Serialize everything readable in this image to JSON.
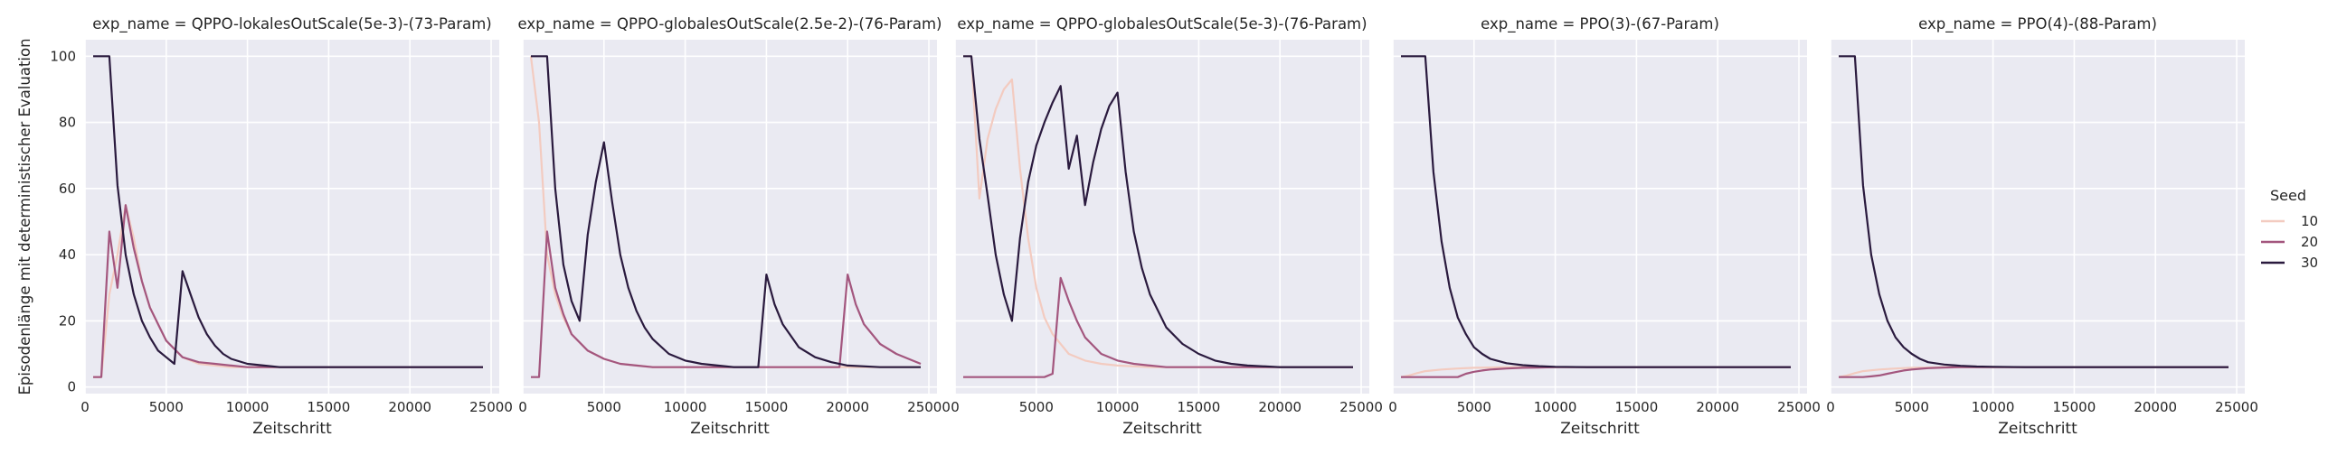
{
  "ylabel": "Episodenlänge mit deterministischer Evaluation",
  "legend": {
    "title": "Seed",
    "entries": [
      {
        "label": "10",
        "color": "#f3cbc0"
      },
      {
        "label": "20",
        "color": "#a3567e"
      },
      {
        "label": "30",
        "color": "#2a1a3e"
      }
    ]
  },
  "chart_data": [
    {
      "type": "line",
      "title": "exp_name = QPPO-lokalesOutScale(5e-3)-(73-Param)",
      "xlabel": "Zeitschritt",
      "xlim": [
        0,
        25500
      ],
      "ylim": [
        -2,
        105
      ],
      "xticks": [
        0,
        5000,
        10000,
        15000,
        20000,
        25000
      ],
      "yticks": [
        0,
        20,
        40,
        60,
        80,
        100
      ],
      "grid": true,
      "series": [
        {
          "name": "10",
          "x": [
            500,
            1000,
            1500,
            2000,
            2500,
            3000,
            3500,
            4000,
            5000,
            6000,
            7000,
            8000,
            9000,
            10000,
            12000,
            15000,
            20000,
            24500
          ],
          "y": [
            3,
            3,
            28,
            40,
            55,
            45,
            32,
            24,
            14,
            9,
            7,
            6.5,
            6,
            6,
            6,
            6,
            6,
            6
          ]
        },
        {
          "name": "20",
          "x": [
            500,
            1000,
            1500,
            2000,
            2500,
            3000,
            3500,
            4000,
            4500,
            5000,
            6000,
            7000,
            8000,
            9000,
            10000,
            12000,
            15000,
            20000,
            24500
          ],
          "y": [
            3,
            3,
            47,
            30,
            55,
            42,
            32,
            24,
            19,
            14,
            9,
            7.5,
            7,
            6.5,
            6,
            6,
            6,
            6,
            6
          ]
        },
        {
          "name": "30",
          "x": [
            500,
            1000,
            1500,
            2000,
            2500,
            3000,
            3500,
            4000,
            4500,
            5000,
            5500,
            6000,
            6500,
            7000,
            7500,
            8000,
            8500,
            9000,
            10000,
            11000,
            12000,
            13000,
            15000,
            20000,
            24500
          ],
          "y": [
            100,
            100,
            100,
            61,
            40,
            28,
            20,
            15,
            11,
            9,
            7,
            35,
            28,
            21,
            16,
            12.5,
            10,
            8.5,
            7,
            6.5,
            6,
            6,
            6,
            6,
            6
          ]
        }
      ]
    },
    {
      "type": "line",
      "title": "exp_name = QPPO-globalesOutScale(2.5e-2)-(76-Param)",
      "xlabel": "Zeitschritt",
      "xlim": [
        0,
        25500
      ],
      "ylim": [
        -2,
        105
      ],
      "xticks": [
        0,
        5000,
        10000,
        15000,
        20000,
        25000
      ],
      "yticks": [
        0,
        20,
        40,
        60,
        80,
        100
      ],
      "grid": true,
      "series": [
        {
          "name": "10",
          "x": [
            500,
            1000,
            1500,
            2000,
            2500,
            3000,
            4000,
            5000,
            6000,
            7000,
            8000,
            9000,
            10000,
            12000,
            15000,
            20000,
            24500
          ],
          "y": [
            100,
            80,
            40,
            28,
            21,
            16,
            11,
            8.5,
            7,
            6.5,
            6,
            6,
            6,
            6,
            6,
            6,
            6
          ]
        },
        {
          "name": "20",
          "x": [
            500,
            1000,
            1500,
            2000,
            2500,
            3000,
            4000,
            5000,
            6000,
            7000,
            8000,
            9000,
            10000,
            12000,
            15000,
            19500,
            20000,
            20500,
            21000,
            22000,
            23000,
            24000,
            24500
          ],
          "y": [
            3,
            3,
            47,
            30,
            22,
            16,
            11,
            8.5,
            7,
            6.5,
            6,
            6,
            6,
            6,
            6,
            6,
            34,
            25,
            19,
            13,
            10,
            8,
            7
          ]
        },
        {
          "name": "30",
          "x": [
            500,
            1000,
            1500,
            2000,
            2500,
            3000,
            3500,
            4000,
            4500,
            5000,
            5500,
            6000,
            6500,
            7000,
            7500,
            8000,
            9000,
            10000,
            11000,
            12000,
            13000,
            14000,
            14500,
            15000,
            15500,
            16000,
            17000,
            18000,
            19000,
            20000,
            22000,
            24500
          ],
          "y": [
            100,
            100,
            100,
            60,
            37,
            26,
            20,
            46,
            62,
            74,
            56,
            40,
            30,
            23,
            18,
            14.5,
            10,
            8,
            7,
            6.5,
            6,
            6,
            6,
            34,
            25,
            19,
            12,
            9,
            7.5,
            6.5,
            6,
            6
          ]
        }
      ]
    },
    {
      "type": "line",
      "title": "exp_name = QPPO-globalesOutScale(5e-3)-(76-Param)",
      "xlabel": "Zeitschritt",
      "xlim": [
        0,
        25500
      ],
      "ylim": [
        -2,
        105
      ],
      "xticks": [
        0,
        5000,
        10000,
        15000,
        20000,
        25000
      ],
      "yticks": [
        0,
        20,
        40,
        60,
        80,
        100
      ],
      "grid": true,
      "series": [
        {
          "name": "10",
          "x": [
            500,
            1000,
            1500,
            2000,
            2500,
            3000,
            3500,
            4000,
            4500,
            5000,
            5500,
            6000,
            7000,
            8000,
            9000,
            10000,
            12000,
            15000,
            20000,
            24500
          ],
          "y": [
            100,
            100,
            57,
            75,
            84,
            90,
            93,
            66,
            45,
            30,
            21,
            16,
            10,
            8,
            7,
            6.5,
            6,
            6,
            6,
            6
          ]
        },
        {
          "name": "20",
          "x": [
            500,
            1000,
            2000,
            3000,
            4000,
            5000,
            5500,
            6000,
            6500,
            7000,
            7500,
            8000,
            9000,
            10000,
            11000,
            12000,
            13000,
            15000,
            20000,
            24500
          ],
          "y": [
            3,
            3,
            3,
            3,
            3,
            3,
            3,
            4,
            33,
            26,
            20,
            15,
            10,
            8,
            7,
            6.5,
            6,
            6,
            6,
            6
          ]
        },
        {
          "name": "30",
          "x": [
            500,
            1000,
            1500,
            2000,
            2500,
            3000,
            3500,
            4000,
            4500,
            5000,
            5500,
            6000,
            6500,
            7000,
            7500,
            8000,
            8500,
            9000,
            9500,
            10000,
            10500,
            11000,
            11500,
            12000,
            13000,
            14000,
            15000,
            16000,
            17000,
            18000,
            20000,
            24500
          ],
          "y": [
            100,
            100,
            75,
            58,
            40,
            28,
            20,
            45,
            62,
            73,
            80,
            86,
            91,
            66,
            76,
            55,
            68,
            78,
            85,
            89,
            65,
            47,
            36,
            28,
            18,
            13,
            10,
            8,
            7,
            6.5,
            6,
            6
          ]
        }
      ]
    },
    {
      "type": "line",
      "title": "exp_name = PPO(3)-(67-Param)",
      "xlabel": "Zeitschritt",
      "xlim": [
        0,
        25500
      ],
      "ylim": [
        -2,
        105
      ],
      "xticks": [
        0,
        5000,
        10000,
        15000,
        20000,
        25000
      ],
      "yticks": [
        0,
        20,
        40,
        60,
        80,
        100
      ],
      "grid": true,
      "series": [
        {
          "name": "10",
          "x": [
            500,
            1000,
            1500,
            2000,
            3000,
            4000,
            5000,
            6000,
            7000,
            8000,
            10000,
            15000,
            20000,
            24500
          ],
          "y": [
            3,
            3.5,
            4.2,
            4.8,
            5.3,
            5.6,
            5.8,
            5.9,
            6,
            6,
            6,
            6,
            6,
            6
          ]
        },
        {
          "name": "20",
          "x": [
            500,
            1000,
            1500,
            2000,
            3000,
            4000,
            4500,
            5000,
            5500,
            6000,
            7000,
            8000,
            9000,
            10000,
            15000,
            20000,
            24500
          ],
          "y": [
            3,
            3,
            3,
            3,
            3,
            3,
            4,
            4.6,
            5,
            5.3,
            5.6,
            5.8,
            5.9,
            6,
            6,
            6,
            6
          ]
        },
        {
          "name": "30",
          "x": [
            500,
            1000,
            1500,
            2000,
            2500,
            3000,
            3500,
            4000,
            4500,
            5000,
            5500,
            6000,
            7000,
            8000,
            9000,
            10000,
            12000,
            15000,
            20000,
            24500
          ],
          "y": [
            100,
            100,
            100,
            100,
            65,
            44,
            30,
            21,
            16,
            12,
            10,
            8.5,
            7.2,
            6.6,
            6.3,
            6.1,
            6,
            6,
            6,
            6
          ]
        }
      ]
    },
    {
      "type": "line",
      "title": "exp_name = PPO(4)-(88-Param)",
      "xlabel": "Zeitschritt",
      "xlim": [
        0,
        25500
      ],
      "ylim": [
        -2,
        105
      ],
      "xticks": [
        0,
        5000,
        10000,
        15000,
        20000,
        25000
      ],
      "yticks": [
        0,
        20,
        40,
        60,
        80,
        100
      ],
      "grid": true,
      "series": [
        {
          "name": "10",
          "x": [
            500,
            1000,
            1500,
            2000,
            3000,
            4000,
            5000,
            6000,
            7000,
            8000,
            10000,
            15000,
            20000,
            24500
          ],
          "y": [
            3,
            3.5,
            4.2,
            4.8,
            5.3,
            5.6,
            5.8,
            5.9,
            6,
            6,
            6,
            6,
            6,
            6
          ]
        },
        {
          "name": "20",
          "x": [
            500,
            1000,
            1500,
            2000,
            2500,
            3000,
            3500,
            4000,
            4500,
            5000,
            5500,
            6000,
            7000,
            8000,
            10000,
            15000,
            20000,
            24500
          ],
          "y": [
            3,
            3,
            3,
            3,
            3.2,
            3.5,
            4,
            4.5,
            5,
            5.3,
            5.5,
            5.7,
            5.9,
            6,
            6,
            6,
            6,
            6
          ]
        },
        {
          "name": "30",
          "x": [
            500,
            1000,
            1500,
            2000,
            2500,
            3000,
            3500,
            4000,
            4500,
            5000,
            5500,
            6000,
            7000,
            8000,
            9000,
            10000,
            12000,
            15000,
            20000,
            24500
          ],
          "y": [
            100,
            100,
            100,
            61,
            40,
            28,
            20,
            15,
            12,
            10,
            8.5,
            7.5,
            6.8,
            6.4,
            6.2,
            6.1,
            6,
            6,
            6,
            6
          ]
        }
      ]
    }
  ]
}
